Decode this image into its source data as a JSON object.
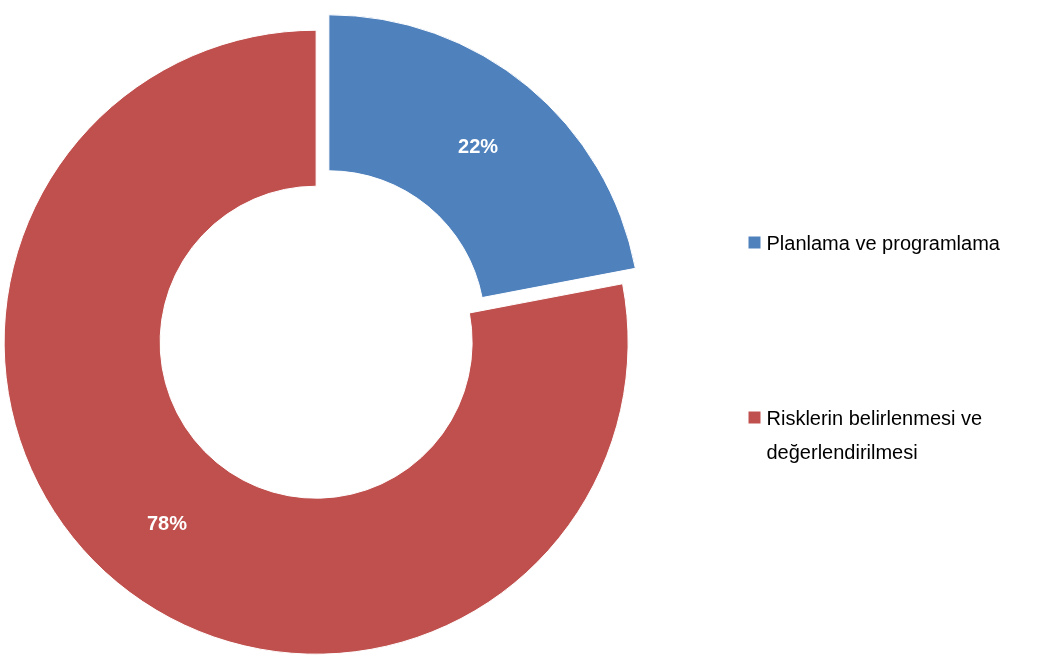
{
  "chart_data": {
    "type": "donut",
    "categories": [
      "Planlama ve programlama",
      "Risklerin belirlenmesi ve değerlendirilmesi"
    ],
    "values": [
      22,
      78
    ],
    "colors": [
      "#4f81bd",
      "#c0504d"
    ],
    "value_labels": [
      "22%",
      "78%"
    ],
    "legend": "right"
  }
}
